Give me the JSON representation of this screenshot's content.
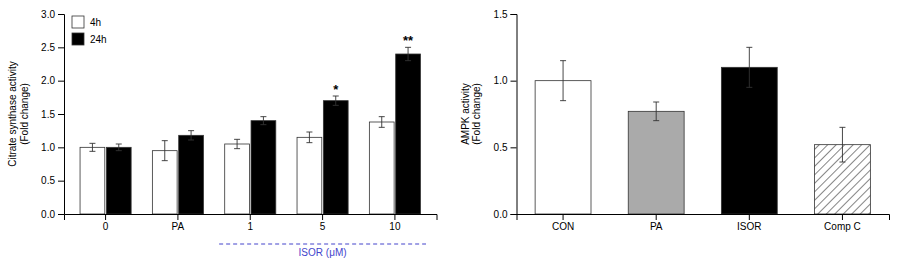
{
  "chart_data": [
    {
      "type": "bar",
      "ylabel": "Citrate synthase activity\n(Fold change)",
      "categories": [
        "0",
        "PA",
        "1",
        "5",
        "10"
      ],
      "series": [
        {
          "name": "4h",
          "color": "#ffffff",
          "values": [
            1.0,
            0.95,
            1.05,
            1.15,
            1.38
          ],
          "errors": [
            0.06,
            0.15,
            0.07,
            0.08,
            0.08
          ]
        },
        {
          "name": "24h",
          "color": "#000000",
          "values": [
            1.0,
            1.18,
            1.4,
            1.7,
            2.4
          ],
          "errors": [
            0.05,
            0.07,
            0.06,
            0.07,
            0.1
          ]
        }
      ],
      "ylim": [
        0.0,
        3.0
      ],
      "yticks": [
        {
          "value": 0.0,
          "label": "0.0"
        },
        {
          "value": 0.5,
          "label": "0.5"
        },
        {
          "value": 1.0,
          "label": "1.0"
        },
        {
          "value": 1.5,
          "label": "1.5"
        },
        {
          "value": 2.0,
          "label": "2.0"
        },
        {
          "value": 2.5,
          "label": "2.5"
        },
        {
          "value": 3.0,
          "label": "3.0"
        }
      ],
      "legend": "upper left",
      "annotations": [
        {
          "text": "*",
          "category": "5",
          "series": "24h"
        },
        {
          "text": "**",
          "category": "10",
          "series": "24h"
        },
        {
          "text": "ISOR (μM)",
          "categories": [
            "1",
            "5",
            "10"
          ],
          "color": "#4444cc"
        }
      ]
    },
    {
      "type": "bar",
      "ylabel": "AMPK activity\n(Fold change)",
      "categories": [
        "CON",
        "PA",
        "ISOR",
        "Comp C"
      ],
      "values": [
        1.0,
        0.77,
        1.1,
        0.52
      ],
      "errors": [
        0.15,
        0.07,
        0.15,
        0.13
      ],
      "colors": [
        "#ffffff",
        "#aaaaaa",
        "#000000",
        "#ffffff"
      ],
      "ylim": [
        0.0,
        1.5
      ],
      "yticks": [
        {
          "value": 0.0,
          "label": "0.0"
        },
        {
          "value": 0.5,
          "label": "0.5"
        },
        {
          "value": 1.0,
          "label": "1.0"
        },
        {
          "value": 1.5,
          "label": "1.5"
        }
      ]
    }
  ]
}
